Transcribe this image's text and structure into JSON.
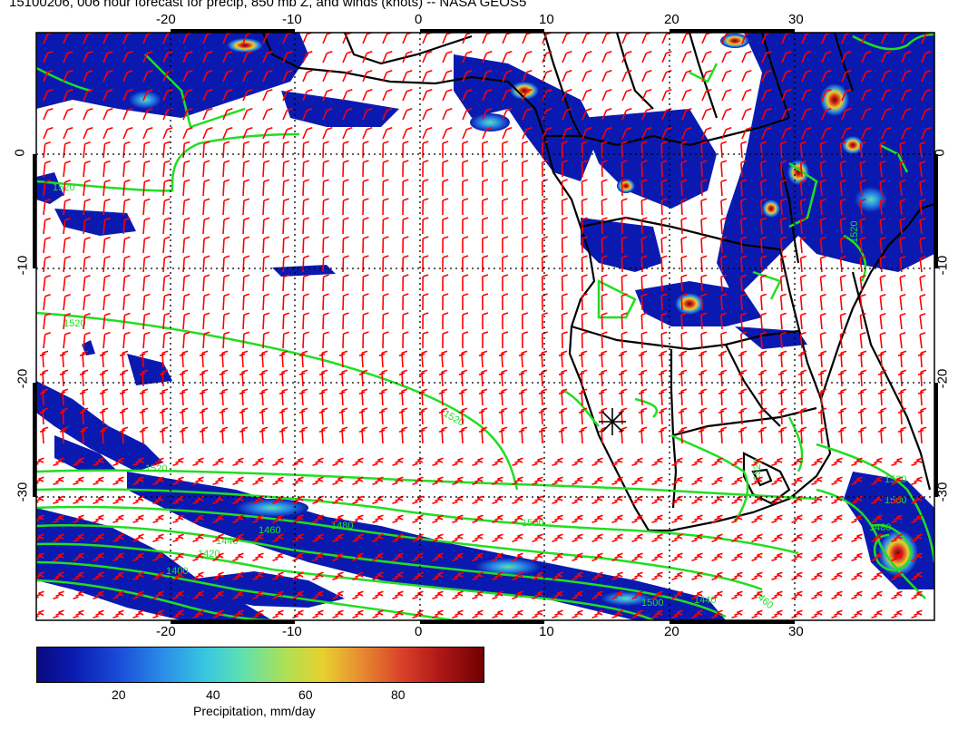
{
  "title": "15100206, 006 hour forecast for precip, 850 mb Z, and winds (knots) -- NASA GEOS5",
  "map": {
    "lon_labels": [
      "-20",
      "-10",
      "0",
      "10",
      "20",
      "30"
    ],
    "lat_labels": [
      "0",
      "-10",
      "-20",
      "-30"
    ],
    "contour_labels": [
      "1520",
      "1520",
      "1520",
      "1520",
      "1500",
      "1480",
      "1460",
      "1440",
      "1420",
      "1400",
      "1500",
      "1460",
      "1440",
      "1520",
      "1500",
      "1480",
      "1520",
      "1520"
    ],
    "colors": {
      "wind_barbs": "#ff0000",
      "contours": "#00ee00",
      "coastlines": "#000000"
    }
  },
  "colorbar": {
    "ticks": [
      "20",
      "40",
      "60",
      "80"
    ],
    "label": "Precipitation, mm/day"
  }
}
